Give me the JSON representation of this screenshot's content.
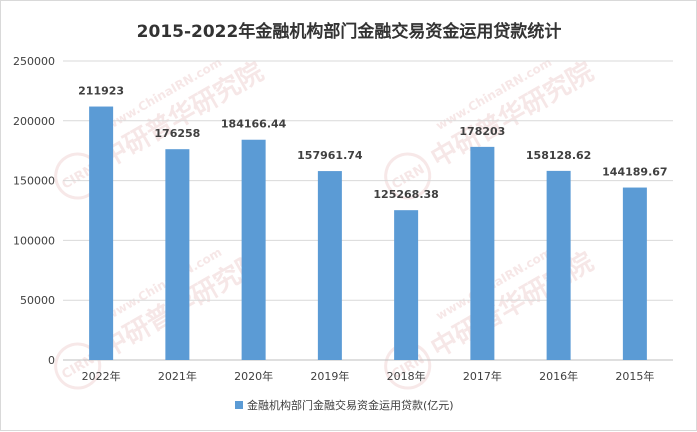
{
  "chart_data": {
    "type": "bar",
    "title": "2015-2022年金融机构部门金融交易资金运用贷款统计",
    "categories": [
      "2022年",
      "2021年",
      "2020年",
      "2019年",
      "2018年",
      "2017年",
      "2016年",
      "2015年"
    ],
    "series": [
      {
        "name": "金融机构部门金融交易资金运用贷款(亿元)",
        "values": [
          211923,
          176258,
          184166.44,
          157961.74,
          125268.38,
          178203,
          158128.62,
          144189.67
        ],
        "labels": [
          "211923",
          "176258",
          "184166.44",
          "157961.74",
          "125268.38",
          "178203",
          "158128.62",
          "144189.67"
        ],
        "color": "#5b9bd5"
      }
    ],
    "ylim": [
      0,
      250000
    ],
    "yticks": [
      0,
      50000,
      100000,
      150000,
      200000,
      250000
    ],
    "ytick_labels": [
      "0",
      "50000",
      "100000",
      "150000",
      "200000",
      "250000"
    ],
    "grid": true,
    "legend_position": "bottom"
  },
  "watermark": {
    "text": "中研普华研究院",
    "url_text": "www.ChinaIRN.com",
    "badge": "CIRN"
  },
  "colors": {
    "bar": "#5b9bd5",
    "grid": "#d9d9d9",
    "axis": "#bfbfbf",
    "watermark": "#e8bcbc"
  }
}
